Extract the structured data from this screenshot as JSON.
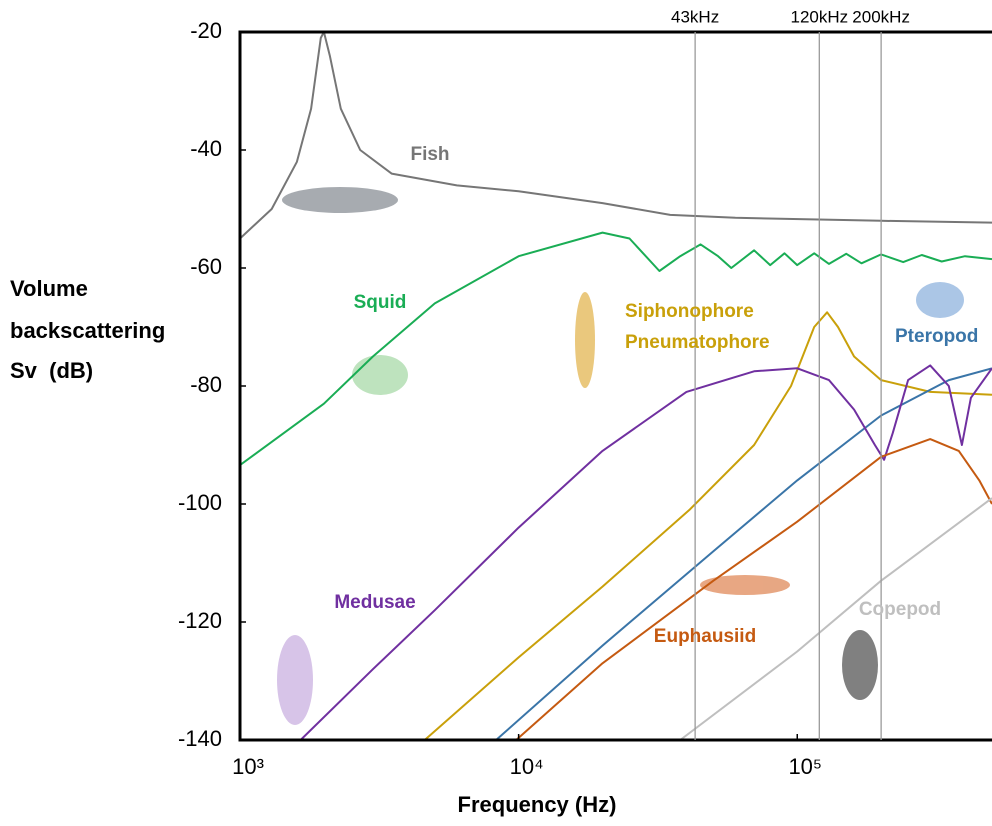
{
  "chart_data": {
    "type": "line",
    "x_label": "Frequency (Hz)",
    "y_label": [
      "Volume",
      "backscattering",
      "Sv  (dB)"
    ],
    "x_scale": "log",
    "xlim": [
      1000,
      500000
    ],
    "xticks": [
      {
        "value": 1000,
        "label": "10³"
      },
      {
        "value": 10000,
        "label": "10⁴"
      },
      {
        "value": 100000,
        "label": "10⁵"
      }
    ],
    "ylim": [
      -140,
      -20
    ],
    "yticks": [
      -20,
      -40,
      -60,
      -80,
      -100,
      -120,
      -140
    ],
    "vlines": [
      {
        "value": 43000,
        "label": "43kHz"
      },
      {
        "value": 120000,
        "label": "120kHz"
      },
      {
        "value": 200000,
        "label": "200kHz"
      }
    ],
    "series": [
      {
        "name": "Fish",
        "color": "#767676",
        "x": [
          1000,
          1300,
          1600,
          1800,
          1950,
          2000,
          2100,
          2300,
          2700,
          3500,
          6000,
          10000,
          20000,
          35000,
          60000,
          200000,
          500000
        ],
        "values": [
          -55,
          -50,
          -42,
          -33,
          -21,
          -20,
          -24,
          -33,
          -40,
          -44,
          -46,
          -47,
          -49,
          -51,
          -51.5,
          -52,
          -52.3
        ]
      },
      {
        "name": "Squid",
        "color": "#1aad55",
        "x": [
          1000,
          2000,
          3000,
          5000,
          10000,
          20000,
          25000,
          32000,
          38000,
          45000,
          52000,
          58000,
          70000,
          80000,
          90000,
          100000,
          115000,
          130000,
          150000,
          170000,
          200000,
          240000,
          280000,
          330000,
          400000,
          500000
        ],
        "values": [
          -93.4,
          -83,
          -75,
          -66,
          -58,
          -54,
          -55,
          -60.5,
          -58,
          -56,
          -58,
          -60,
          -57,
          -59.5,
          -57.5,
          -59.5,
          -57.5,
          -59.3,
          -57.6,
          -59.2,
          -57.7,
          -59,
          -57.8,
          -58.9,
          -58,
          -58.5
        ]
      },
      {
        "name": [
          "Siphonophore",
          "Pneumatophore"
        ],
        "color": "#c9a00a",
        "x": [
          4600,
          10000,
          20000,
          41000,
          70000,
          95000,
          115000,
          128000,
          140000,
          160000,
          200000,
          300000,
          500000
        ],
        "values": [
          -140,
          -126,
          -114,
          -101,
          -90,
          -80,
          -70,
          -67.5,
          -70,
          -75,
          -79,
          -81,
          -81.5
        ]
      },
      {
        "name": "Pteropod",
        "color": "#3a75a8",
        "x": [
          8300,
          20000,
          50000,
          100000,
          200000,
          350000,
          500000
        ],
        "values": [
          -140,
          -124,
          -108,
          -96,
          -85,
          -79,
          -77
        ]
      },
      {
        "name": "Medusae",
        "color": "#7030a0",
        "x": [
          1650,
          3000,
          5000,
          10000,
          20000,
          40000,
          70000,
          100000,
          130000,
          160000,
          190000,
          205000,
          220000,
          250000,
          300000,
          350000,
          390000,
          420000,
          500000
        ],
        "values": [
          -140,
          -128,
          -118,
          -104,
          -91,
          -81,
          -77.5,
          -77,
          -79,
          -84,
          -90,
          -92.5,
          -88,
          -79,
          -76.5,
          -80,
          -90,
          -82,
          -77
        ]
      },
      {
        "name": "Euphausiid",
        "color": "#c55a11",
        "x": [
          9800,
          20000,
          50000,
          100000,
          200000,
          300000,
          380000,
          450000,
          500000
        ],
        "values": [
          -140,
          -127,
          -113,
          -103,
          -92,
          -89,
          -91,
          -96,
          -100
        ]
      },
      {
        "name": "Copepod",
        "color": "#bfbfbf",
        "x": [
          38000,
          100000,
          200000,
          500000
        ],
        "values": [
          -140,
          -125,
          -113,
          -99
        ]
      }
    ]
  }
}
